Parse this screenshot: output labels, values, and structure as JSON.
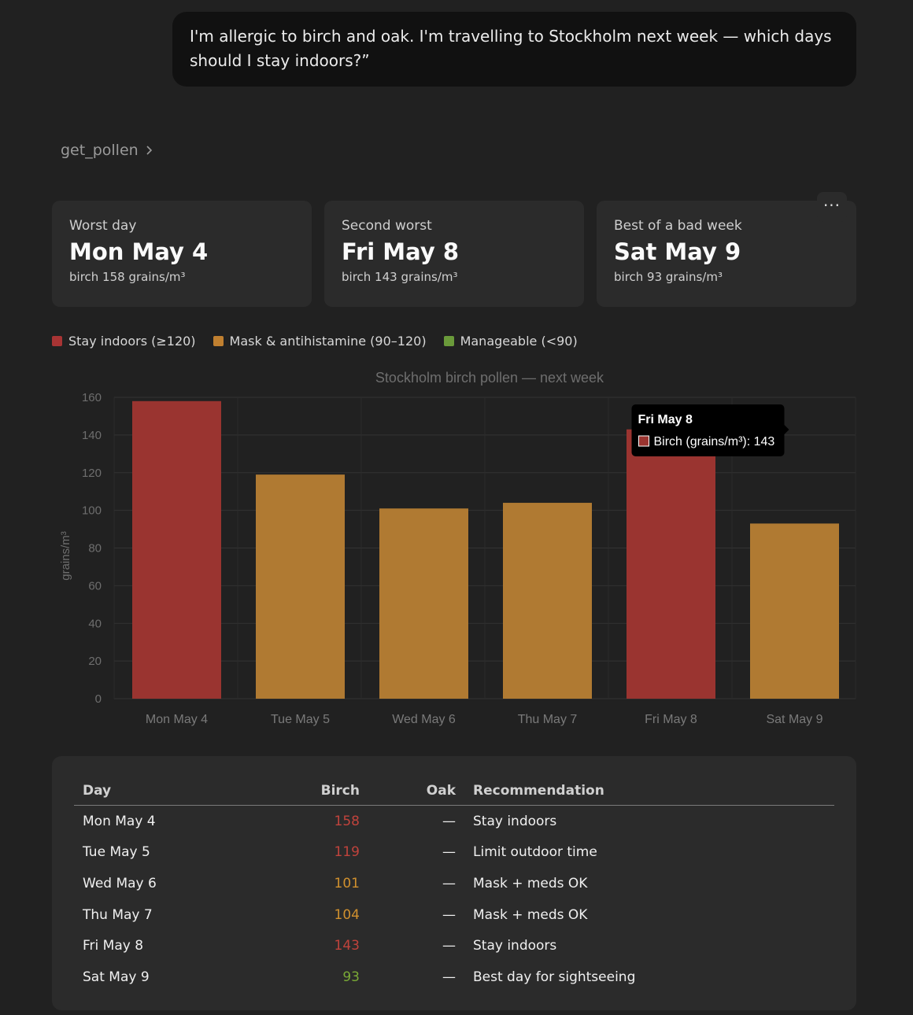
{
  "message": {
    "text": "I'm allergic to birch and oak. I'm travelling to Stockholm next week — which days should I stay indoors?”"
  },
  "tool_call": {
    "name": "get_pollen",
    "chevron": "chevron-right-icon"
  },
  "more_menu": {
    "label": "···",
    "icon": "more-horizontal-icon"
  },
  "cards": [
    {
      "label": "Worst day",
      "day": "Mon May 4",
      "value": "birch 158 grains/m³"
    },
    {
      "label": "Second worst",
      "day": "Fri May 8",
      "value": "birch 143 grains/m³"
    },
    {
      "label": "Best of a bad week",
      "day": "Sat May 9",
      "value": "birch 93 grains/m³"
    }
  ],
  "legend": [
    {
      "label": "Stay indoors (≥120)",
      "color": "#a83434"
    },
    {
      "label": "Mask & antihistamine (90–120)",
      "color": "#c08030"
    },
    {
      "label": "Manageable (<90)",
      "color": "#6a9a3a"
    }
  ],
  "chart_data": {
    "type": "bar",
    "title": "Stockholm birch pollen — next week",
    "ylabel": "grains/m³",
    "xlabel": "",
    "categories": [
      "Mon May 4",
      "Tue May 5",
      "Wed May 6",
      "Thu May 7",
      "Fri May 8",
      "Sat May 9"
    ],
    "series": [
      {
        "name": "Birch (grains/m³)",
        "values": [
          158,
          119,
          101,
          104,
          143,
          93
        ]
      }
    ],
    "bar_colors": [
      "#9a3430",
      "#b07a32",
      "#b07a32",
      "#b07a32",
      "#9a3430",
      "#b07a32"
    ],
    "ylim": [
      0,
      160
    ],
    "yticks": [
      0,
      20,
      40,
      60,
      80,
      100,
      120,
      140,
      160
    ],
    "grid": true,
    "tooltip": {
      "title": "Fri May 8",
      "label": "Birch (grains/m³): 143",
      "index": 4
    }
  },
  "table": {
    "headers": {
      "day": "Day",
      "birch": "Birch",
      "oak": "Oak",
      "rec": "Recommendation"
    },
    "rows": [
      {
        "day": "Mon May 4",
        "birch": "158",
        "birch_color": "#c0433c",
        "oak": "—",
        "rec": "Stay indoors"
      },
      {
        "day": "Tue May 5",
        "birch": "119",
        "birch_color": "#c0433c",
        "oak": "—",
        "rec": "Limit outdoor time"
      },
      {
        "day": "Wed May 6",
        "birch": "101",
        "birch_color": "#d0902e",
        "oak": "—",
        "rec": "Mask + meds OK"
      },
      {
        "day": "Thu May 7",
        "birch": "104",
        "birch_color": "#d0902e",
        "oak": "—",
        "rec": "Mask + meds OK"
      },
      {
        "day": "Fri May 8",
        "birch": "143",
        "birch_color": "#c0433c",
        "oak": "—",
        "rec": "Stay indoors"
      },
      {
        "day": "Sat May 9",
        "birch": "93",
        "birch_color": "#7aaa36",
        "oak": "—",
        "rec": "Best day for sightseeing"
      }
    ]
  }
}
